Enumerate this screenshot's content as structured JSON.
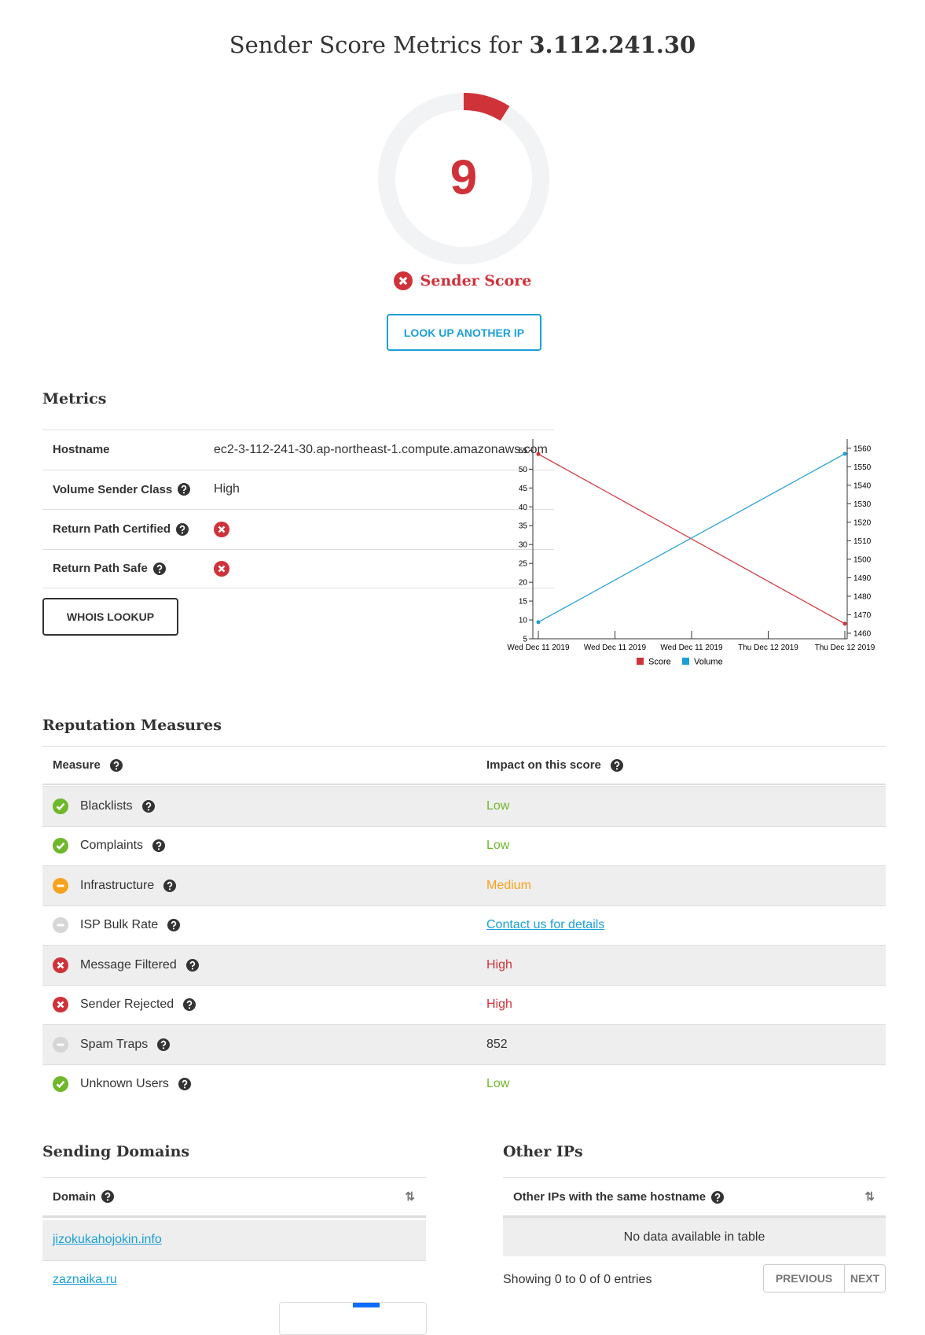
{
  "header": {
    "title_prefix": "Sender Score Metrics for",
    "ip": "3.112.241.30"
  },
  "score": {
    "value": 9,
    "scale": [
      0,
      100
    ],
    "label": "Sender Score",
    "button": "LOOK UP ANOTHER IP"
  },
  "metrics": {
    "heading": "Metrics",
    "rows": [
      {
        "label": "Hostname",
        "value": "ec2-3-112-241-30.ap-northeast-1.compute.amazonaws.com"
      },
      {
        "label": "Volume Sender Class",
        "help": true,
        "value": "High"
      },
      {
        "label": "Return Path Certified",
        "help": true,
        "status": "bad"
      },
      {
        "label": "Return Path Safe",
        "help": true,
        "status": "bad"
      }
    ],
    "button": "WHOIS LOOKUP"
  },
  "chart_data": {
    "type": "line",
    "x": [
      "Wed Dec 11 2019",
      "Thu Dec 12 2019"
    ],
    "xtick_labels": [
      "Wed Dec 11 2019",
      "Wed Dec 11 2019",
      "Wed Dec 11 2019",
      "Thu Dec 12 2019",
      "Thu Dec 12 2019"
    ],
    "series": [
      {
        "name": "Score",
        "color": "#d0323a",
        "values": [
          54,
          9
        ]
      },
      {
        "name": "Volume",
        "color": "#1ba0d7",
        "axis": "y2",
        "values": [
          1466,
          1557
        ]
      }
    ],
    "ylim": [
      5,
      58
    ],
    "yticks": [
      5,
      10,
      15,
      20,
      25,
      30,
      35,
      40,
      45,
      50,
      55
    ],
    "y2lim": [
      1457,
      1565
    ],
    "y2ticks": [
      1460,
      1470,
      1480,
      1490,
      1500,
      1510,
      1520,
      1530,
      1540,
      1550,
      1560
    ]
  },
  "reputation": {
    "heading": "Reputation Measures",
    "columns": [
      "Measure",
      "Impact on this score"
    ],
    "rows": [
      {
        "measure": "Blacklists",
        "status": "good",
        "impact": "Low"
      },
      {
        "measure": "Complaints",
        "status": "good",
        "impact": "Low"
      },
      {
        "measure": "Infrastructure",
        "status": "medium",
        "impact": "Medium"
      },
      {
        "measure": "ISP Bulk Rate",
        "status": "na",
        "impact": "Contact us for details"
      },
      {
        "measure": "Message Filtered",
        "status": "bad",
        "impact": "High"
      },
      {
        "measure": "Sender Rejected",
        "status": "bad",
        "impact": "High"
      },
      {
        "measure": "Spam Traps",
        "status": "na",
        "impact": 852
      },
      {
        "measure": "Unknown Users",
        "status": "good",
        "impact": "Low"
      }
    ]
  },
  "sending_domains": {
    "heading": "Sending Domains",
    "column": "Domain",
    "rows": [
      "jizokukahojokin.info",
      "zaznaika.ru"
    ]
  },
  "other_ips": {
    "heading": "Other IPs",
    "column": "Other IPs with the same hostname",
    "empty": "No data available in table",
    "info": "Showing 0 to 0 of 0 entries",
    "previous": "PREVIOUS",
    "next": "NEXT"
  }
}
